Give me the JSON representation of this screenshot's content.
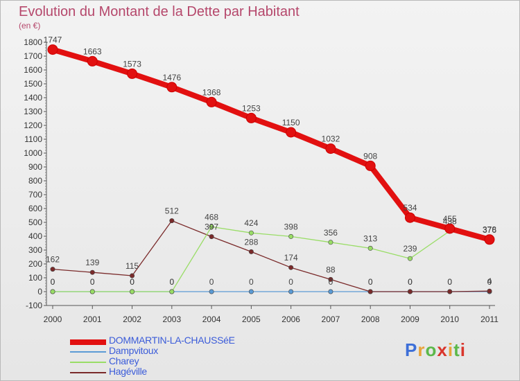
{
  "title": "Evolution du Montant de la Dette par Habitant",
  "unit_label": "(en €)",
  "logo": {
    "text": "Proxiti",
    "colors": [
      "#3d6fd8",
      "#e8a33a",
      "#5cb84a",
      "#d9352c",
      "#e8a33a",
      "#5cb84a",
      "#d9352c"
    ]
  },
  "chart_data": {
    "type": "line",
    "x": [
      "2000",
      "2001",
      "2002",
      "2003",
      "2004",
      "2005",
      "2006",
      "2007",
      "2008",
      "2009",
      "2010",
      "2011"
    ],
    "ylim": [
      -100,
      1800
    ],
    "yticks": [
      -100,
      0,
      100,
      200,
      300,
      400,
      500,
      600,
      700,
      800,
      900,
      1000,
      1100,
      1200,
      1300,
      1400,
      1500,
      1600,
      1700,
      1800
    ],
    "grid": false,
    "legend_position": "bottom-left",
    "series": [
      {
        "name": "DOMMARTIN-LA-CHAUSSéE",
        "color": "#e21010",
        "values": [
          1747,
          1663,
          1573,
          1476,
          1368,
          1253,
          1150,
          1032,
          908,
          534,
          455,
          376
        ]
      },
      {
        "name": "Dampvitoux",
        "color": "#5b9bd5",
        "values": [
          0,
          0,
          0,
          0,
          0,
          0,
          0,
          0,
          0,
          0,
          0,
          0
        ]
      },
      {
        "name": "Charey",
        "color": "#99dd66",
        "values": [
          0,
          0,
          0,
          0,
          468,
          424,
          398,
          356,
          313,
          239,
          438,
          378
        ]
      },
      {
        "name": "Hagéville",
        "color": "#7a2a2a",
        "values": [
          162,
          139,
          115,
          512,
          397,
          288,
          174,
          88,
          0,
          0,
          0,
          4
        ]
      }
    ]
  }
}
